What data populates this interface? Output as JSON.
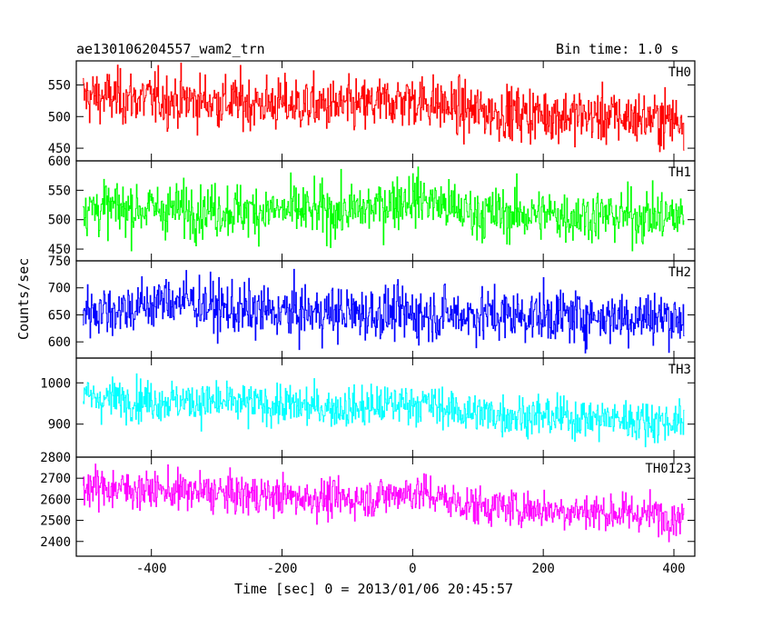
{
  "header": {
    "title_left": "ae130106204557_wam2_trn",
    "title_right": "Bin time: 1.0 s"
  },
  "chart_data": {
    "type": "line",
    "xlabel": "Time [sec] 0 = 2013/01/06 20:45:57",
    "ylabel": "Counts/sec",
    "xlim": [
      -515,
      432
    ],
    "x_ticks": [
      -400,
      -200,
      0,
      200,
      400
    ],
    "x_start": -505,
    "x_end": 415,
    "bin_time": 1.0,
    "panels": [
      {
        "name": "TH0",
        "color": "#ff0000",
        "ylim": [
          430,
          588
        ],
        "y_ticks": [
          450,
          500,
          550
        ],
        "mean_start": 532,
        "mean_end": 495,
        "amplitude": 30,
        "bump_at": 0,
        "bump": 15
      },
      {
        "name": "TH1",
        "color": "#00ff00",
        "ylim": [
          430,
          600
        ],
        "y_ticks": [
          450,
          500,
          550,
          600
        ],
        "mean_start": 520,
        "mean_end": 505,
        "amplitude": 32,
        "bump_at": 0,
        "bump": 25
      },
      {
        "name": "TH2",
        "color": "#0000ff",
        "ylim": [
          570,
          750
        ],
        "y_ticks": [
          600,
          650,
          700,
          750
        ],
        "mean_start": 660,
        "mean_end": 645,
        "amplitude": 35,
        "bump_at": -360,
        "bump": 20
      },
      {
        "name": "TH3",
        "color": "#00ffff",
        "ylim": [
          820,
          1060
        ],
        "y_ticks": [
          900,
          1000
        ],
        "mean_start": 965,
        "mean_end": 905,
        "amplitude": 35,
        "bump_at": 0,
        "bump": 20
      },
      {
        "name": "TH0123",
        "color": "#ff00ff",
        "ylim": [
          2330,
          2800
        ],
        "y_ticks": [
          2400,
          2500,
          2600,
          2700,
          2800
        ],
        "mean_start": 2660,
        "mean_end": 2520,
        "amplitude": 65,
        "bump_at": 0,
        "bump": 50
      }
    ]
  }
}
